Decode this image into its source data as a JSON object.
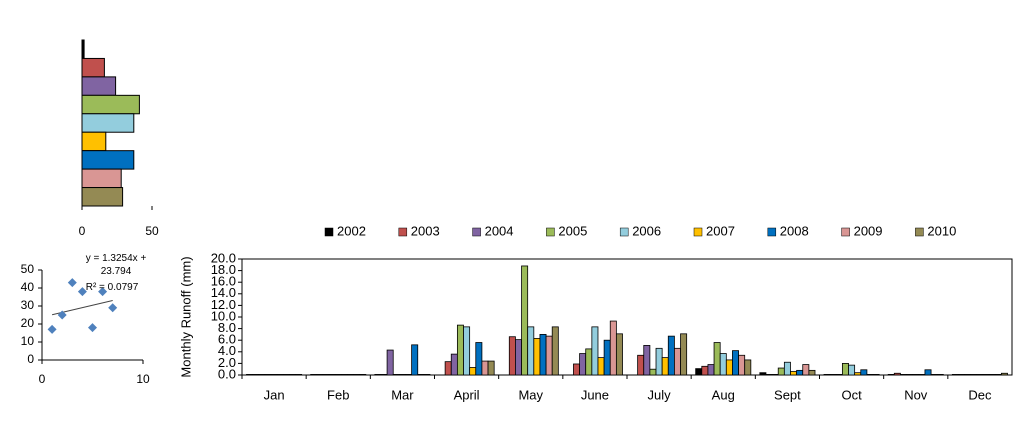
{
  "chart_data": [
    {
      "type": "barh",
      "categories": [
        null,
        null,
        null,
        null,
        null,
        null,
        null,
        null,
        null
      ],
      "values": [
        1.5,
        16,
        24,
        41,
        37,
        17,
        37,
        28,
        29
      ],
      "colors": [
        "#000000",
        "#c0504d",
        "#8064a2",
        "#9bbb59",
        "#93cddd",
        "#ffc000",
        "#0070c0",
        "#d99694",
        "#948a54"
      ],
      "xlim": [
        0,
        50
      ],
      "xticks": [
        0,
        50
      ]
    },
    {
      "type": "scatter",
      "x": [
        1,
        2,
        3,
        4,
        5,
        6,
        7
      ],
      "values": [
        17,
        25,
        43,
        38,
        18,
        38,
        29
      ],
      "color": "#4f81bd",
      "xlim": [
        0,
        10
      ],
      "xticks": [
        0,
        10
      ],
      "ylim": [
        0,
        50
      ],
      "yticks": [
        0,
        10,
        20,
        30,
        40,
        50
      ],
      "trendline": {
        "label": "y = 1.3254x + 23.794",
        "r2_label": "R² = 0.0797",
        "slope": 1.3254,
        "intercept": 23.794
      }
    },
    {
      "type": "bar",
      "y_label": "Monthly  Runoff (mm)",
      "categories": [
        "Jan",
        "Feb",
        "Mar",
        "April",
        "May",
        "June",
        "July",
        "Aug",
        "Sept",
        "Oct",
        "Nov",
        "Dec"
      ],
      "series": [
        {
          "name": "2002",
          "color": "#000000",
          "values": [
            0.1,
            0.1,
            0.1,
            0,
            0,
            0,
            0,
            1.1,
            0.4,
            0.1,
            0.1,
            0.1
          ]
        },
        {
          "name": "2003",
          "color": "#c0504d",
          "values": [
            0.1,
            0.1,
            0.1,
            2.3,
            6.6,
            1.9,
            3.4,
            1.5,
            0.1,
            0.1,
            0.3,
            0.1
          ]
        },
        {
          "name": "2004",
          "color": "#8064a2",
          "values": [
            0.1,
            0.1,
            4.3,
            3.6,
            6.1,
            3.7,
            5.1,
            1.8,
            0.1,
            0.1,
            0.1,
            0.1
          ]
        },
        {
          "name": "2005",
          "color": "#9bbb59",
          "values": [
            0.1,
            0.1,
            0.1,
            8.6,
            18.8,
            4.5,
            1.0,
            5.6,
            1.2,
            2.0,
            0.1,
            0.1
          ]
        },
        {
          "name": "2006",
          "color": "#93cddd",
          "values": [
            0.1,
            0.1,
            0.1,
            8.3,
            8.3,
            8.3,
            4.6,
            3.7,
            2.2,
            1.7,
            0.1,
            0.1
          ]
        },
        {
          "name": "2007",
          "color": "#ffc000",
          "values": [
            0.1,
            0.1,
            0.1,
            1.3,
            6.3,
            3.0,
            3.0,
            2.6,
            0.6,
            0.4,
            0.1,
            0.1
          ]
        },
        {
          "name": "2008",
          "color": "#0070c0",
          "values": [
            0.1,
            0.1,
            5.2,
            5.6,
            7.0,
            6.0,
            6.7,
            4.2,
            0.8,
            0.9,
            0.9,
            0.1
          ]
        },
        {
          "name": "2009",
          "color": "#d99694",
          "values": [
            0.1,
            0.1,
            0.1,
            2.4,
            6.7,
            9.3,
            4.6,
            3.4,
            1.8,
            0.1,
            0.1,
            0.1
          ]
        },
        {
          "name": "2010",
          "color": "#948a54",
          "values": [
            0.1,
            0.1,
            0.1,
            2.4,
            8.3,
            7.1,
            7.1,
            2.6,
            0.8,
            0.1,
            0.1,
            0.3
          ]
        }
      ],
      "ylim": [
        0,
        20
      ],
      "yticks": [
        {
          "value": 0,
          "label": "0.0"
        },
        {
          "value": 2,
          "label": "2.0"
        },
        {
          "value": 4,
          "label": "4.0"
        },
        {
          "value": 6,
          "label": "6.0"
        },
        {
          "value": 8,
          "label": "8.0"
        },
        {
          "value": 10,
          "label": "10.0"
        },
        {
          "value": 12,
          "label": "12.0"
        },
        {
          "value": 14,
          "label": "14.0"
        },
        {
          "value": 16,
          "label": "16.0"
        },
        {
          "value": 18,
          "label": "18.0"
        },
        {
          "value": 20,
          "label": "20.0"
        }
      ],
      "grid": false
    }
  ]
}
